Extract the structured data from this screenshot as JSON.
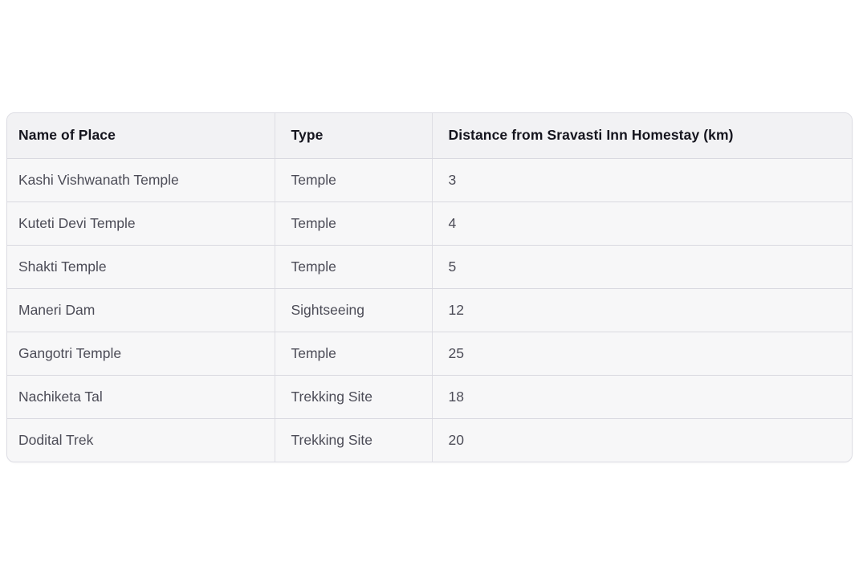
{
  "page": {
    "background": "#ffffff"
  },
  "table": {
    "columns": [
      "Name of Place",
      "Type",
      "Distance from Sravasti Inn Homestay (km)"
    ],
    "rows": [
      [
        "Kashi Vishwanath Temple",
        "Temple",
        "3"
      ],
      [
        "Kuteti Devi Temple",
        "Temple",
        "4"
      ],
      [
        "Shakti Temple",
        "Temple",
        "5"
      ],
      [
        "Maneri Dam",
        "Sightseeing",
        "12"
      ],
      [
        "Gangotri Temple",
        "Temple",
        "25"
      ],
      [
        "Nachiketa Tal",
        "Trekking Site",
        "18"
      ],
      [
        "Dodital Trek",
        "Trekking Site",
        "20"
      ]
    ],
    "colors": {
      "header_bg": "#f2f2f4",
      "row_bg": "#f7f7f8",
      "border": "#d9d9e0",
      "header_text": "#15151e",
      "body_text": "#4c4c57"
    }
  },
  "chart_data": {
    "type": "table",
    "title": "",
    "columns": [
      "Name of Place",
      "Type",
      "Distance from Sravasti Inn Homestay (km)"
    ],
    "rows": [
      {
        "name": "Kashi Vishwanath Temple",
        "type": "Temple",
        "distance_km": 3
      },
      {
        "name": "Kuteti Devi Temple",
        "type": "Temple",
        "distance_km": 4
      },
      {
        "name": "Shakti Temple",
        "type": "Temple",
        "distance_km": 5
      },
      {
        "name": "Maneri Dam",
        "type": "Sightseeing",
        "distance_km": 12
      },
      {
        "name": "Gangotri Temple",
        "type": "Temple",
        "distance_km": 25
      },
      {
        "name": "Nachiketa Tal",
        "type": "Trekking Site",
        "distance_km": 18
      },
      {
        "name": "Dodital Trek",
        "type": "Trekking Site",
        "distance_km": 20
      }
    ]
  }
}
